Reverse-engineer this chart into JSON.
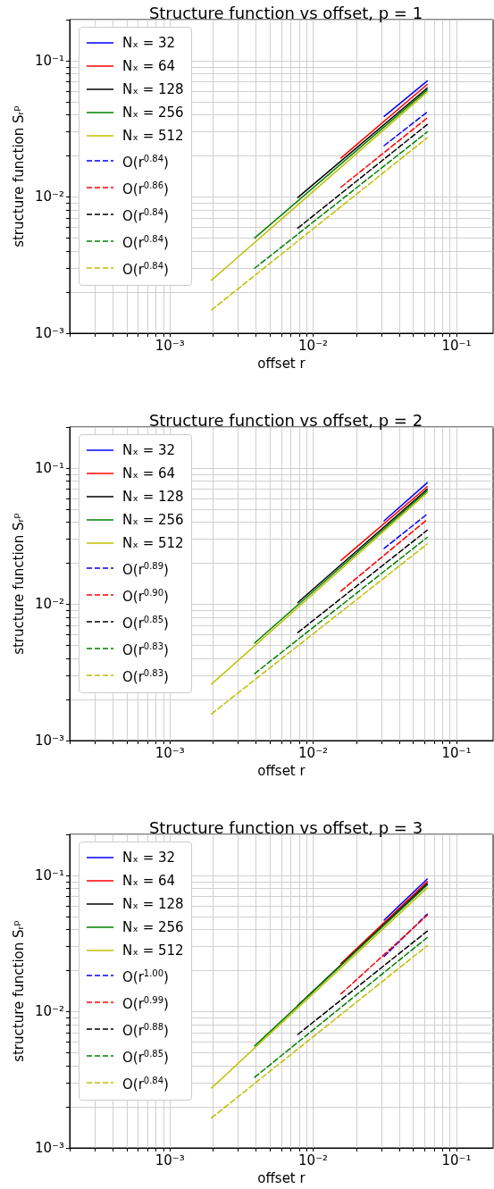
{
  "chart_data": [
    {
      "type": "line",
      "title": "Structure function vs offset, p = 1",
      "xlabel": "offset r",
      "ylabel": "structure function Sᵣᵖ",
      "log": "xy",
      "grid": true,
      "legend": "top left",
      "marker": "none",
      "xlim": [
        0.0002,
        0.18
      ],
      "ylim": [
        0.001,
        0.2
      ],
      "xticks": [
        {
          "value": 0.001,
          "label": "10⁻³"
        },
        {
          "value": 0.01,
          "label": "10⁻²"
        },
        {
          "value": 0.1,
          "label": "10⁻¹"
        }
      ],
      "yticks": [
        {
          "value": 0.001,
          "label": "10⁻³"
        },
        {
          "value": 0.01,
          "label": "10⁻²"
        },
        {
          "value": 0.1,
          "label": "10⁻¹"
        }
      ],
      "series": [
        {
          "name": "Nₓ = 32",
          "color": "#0000ff",
          "x": [
            0.03125,
            0.0625
          ],
          "values": [
            0.039,
            0.071
          ]
        },
        {
          "name": "Nₓ = 64",
          "color": "#ff0000",
          "x": [
            0.015625,
            0.0625
          ],
          "values": [
            0.0193,
            0.067
          ]
        },
        {
          "name": "Nₓ = 128",
          "color": "#000000",
          "x": [
            0.0078125,
            0.0625
          ],
          "values": [
            0.0099,
            0.063
          ]
        },
        {
          "name": "Nₓ = 256",
          "color": "#008000",
          "x": [
            0.00390625,
            0.0625
          ],
          "values": [
            0.005,
            0.061
          ]
        },
        {
          "name": "Nₓ = 512",
          "color": "#bfbf00",
          "x": [
            0.001953125,
            0.0625
          ],
          "values": [
            0.00245,
            0.059
          ]
        },
        {
          "name": "O(r$^{0.84}$)",
          "color": "#0000ff",
          "line_style": "dashed",
          "x": [
            0.03125,
            0.0625
          ],
          "values": [
            0.0238,
            0.042
          ]
        },
        {
          "name": "O(r$^{0.86}$)",
          "color": "#ff0000",
          "line_style": "dashed",
          "x": [
            0.015625,
            0.0625
          ],
          "values": [
            0.0118,
            0.038
          ]
        },
        {
          "name": "O(r$^{0.84}$)",
          "color": "#000000",
          "line_style": "dashed",
          "x": [
            0.0078125,
            0.0625
          ],
          "values": [
            0.0059,
            0.034
          ]
        },
        {
          "name": "O(r$^{0.84}$)",
          "color": "#008000",
          "line_style": "dashed",
          "x": [
            0.00390625,
            0.0625
          ],
          "values": [
            0.003,
            0.03
          ]
        },
        {
          "name": "O(r$^{0.84}$)",
          "color": "#bfbf00",
          "line_style": "dashed",
          "x": [
            0.001953125,
            0.0625
          ],
          "values": [
            0.00148,
            0.0272
          ]
        }
      ]
    },
    {
      "type": "line",
      "title": "Structure function vs offset, p = 2",
      "xlabel": "offset r",
      "ylabel": "structure function Sᵣᵖ",
      "log": "xy",
      "grid": true,
      "legend": "top left",
      "marker": "none",
      "xlim": [
        0.0002,
        0.18
      ],
      "ylim": [
        0.001,
        0.2
      ],
      "xticks": [
        {
          "value": 0.001,
          "label": "10⁻³"
        },
        {
          "value": 0.01,
          "label": "10⁻²"
        },
        {
          "value": 0.1,
          "label": "10⁻¹"
        }
      ],
      "yticks": [
        {
          "value": 0.001,
          "label": "10⁻³"
        },
        {
          "value": 0.01,
          "label": "10⁻²"
        },
        {
          "value": 0.1,
          "label": "10⁻¹"
        }
      ],
      "series": [
        {
          "name": "Nₓ = 32",
          "color": "#0000ff",
          "x": [
            0.03125,
            0.0625
          ],
          "values": [
            0.041,
            0.078
          ]
        },
        {
          "name": "Nₓ = 64",
          "color": "#ff0000",
          "x": [
            0.015625,
            0.0625
          ],
          "values": [
            0.021,
            0.073
          ]
        },
        {
          "name": "Nₓ = 128",
          "color": "#000000",
          "x": [
            0.0078125,
            0.0625
          ],
          "values": [
            0.0103,
            0.07
          ]
        },
        {
          "name": "Nₓ = 256",
          "color": "#008000",
          "x": [
            0.00390625,
            0.0625
          ],
          "values": [
            0.0052,
            0.068
          ]
        },
        {
          "name": "Nₓ = 512",
          "color": "#bfbf00",
          "x": [
            0.001953125,
            0.0625
          ],
          "values": [
            0.0026,
            0.066
          ]
        },
        {
          "name": "O(r$^{0.89}$)",
          "color": "#0000ff",
          "line_style": "dashed",
          "x": [
            0.03125,
            0.0625
          ],
          "values": [
            0.0257,
            0.046
          ]
        },
        {
          "name": "O(r$^{0.90}$)",
          "color": "#ff0000",
          "line_style": "dashed",
          "x": [
            0.015625,
            0.0625
          ],
          "values": [
            0.0125,
            0.042
          ]
        },
        {
          "name": "O(r$^{0.85}$)",
          "color": "#000000",
          "line_style": "dashed",
          "x": [
            0.0078125,
            0.0625
          ],
          "values": [
            0.0062,
            0.035
          ]
        },
        {
          "name": "O(r$^{0.83}$)",
          "color": "#008000",
          "line_style": "dashed",
          "x": [
            0.00390625,
            0.0625
          ],
          "values": [
            0.0031,
            0.031
          ]
        },
        {
          "name": "O(r$^{0.83}$)",
          "color": "#bfbf00",
          "line_style": "dashed",
          "x": [
            0.001953125,
            0.0625
          ],
          "values": [
            0.00157,
            0.0277
          ]
        }
      ]
    },
    {
      "type": "line",
      "title": "Structure function vs offset, p = 3",
      "xlabel": "offset r",
      "ylabel": "structure function Sᵣᵖ",
      "log": "xy",
      "grid": true,
      "legend": "top left",
      "marker": "none",
      "xlim": [
        0.0002,
        0.18
      ],
      "ylim": [
        0.001,
        0.2
      ],
      "xticks": [
        {
          "value": 0.001,
          "label": "10⁻³"
        },
        {
          "value": 0.01,
          "label": "10⁻²"
        },
        {
          "value": 0.1,
          "label": "10⁻¹"
        }
      ],
      "yticks": [
        {
          "value": 0.001,
          "label": "10⁻³"
        },
        {
          "value": 0.01,
          "label": "10⁻²"
        },
        {
          "value": 0.1,
          "label": "10⁻¹"
        }
      ],
      "series": [
        {
          "name": "Nₓ = 32",
          "color": "#0000ff",
          "x": [
            0.03125,
            0.0625
          ],
          "values": [
            0.047,
            0.094
          ]
        },
        {
          "name": "Nₓ = 64",
          "color": "#ff0000",
          "x": [
            0.015625,
            0.0625
          ],
          "values": [
            0.0226,
            0.09
          ]
        },
        {
          "name": "Nₓ = 128",
          "color": "#000000",
          "x": [
            0.0078125,
            0.0625
          ],
          "values": [
            0.0111,
            0.087
          ]
        },
        {
          "name": "Nₓ = 256",
          "color": "#008000",
          "x": [
            0.00390625,
            0.0625
          ],
          "values": [
            0.0056,
            0.085
          ]
        },
        {
          "name": "Nₓ = 512",
          "color": "#bfbf00",
          "x": [
            0.001953125,
            0.0625
          ],
          "values": [
            0.00275,
            0.081
          ]
        },
        {
          "name": "O(r$^{1.00}$)",
          "color": "#0000ff",
          "line_style": "dashed",
          "x": [
            0.03125,
            0.0625
          ],
          "values": [
            0.0254,
            0.052
          ]
        },
        {
          "name": "O(r$^{0.99}$)",
          "color": "#ff0000",
          "line_style": "dashed",
          "x": [
            0.015625,
            0.0625
          ],
          "values": [
            0.0135,
            0.051
          ]
        },
        {
          "name": "O(r$^{0.88}$)",
          "color": "#000000",
          "line_style": "dashed",
          "x": [
            0.0078125,
            0.0625
          ],
          "values": [
            0.0068,
            0.039
          ]
        },
        {
          "name": "O(r$^{0.85}$)",
          "color": "#008000",
          "line_style": "dashed",
          "x": [
            0.00390625,
            0.0625
          ],
          "values": [
            0.0033,
            0.035
          ]
        },
        {
          "name": "O(r$^{0.84}$)",
          "color": "#bfbf00",
          "line_style": "dashed",
          "x": [
            0.001953125,
            0.0625
          ],
          "values": [
            0.00166,
            0.0305
          ]
        }
      ]
    }
  ]
}
